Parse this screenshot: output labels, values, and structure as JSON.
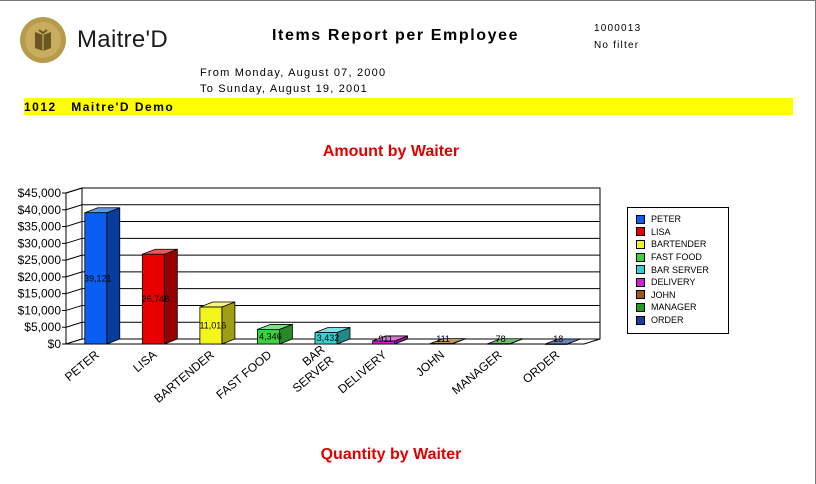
{
  "header": {
    "logo_text": "Maitre'D",
    "title": "Items Report per Employee",
    "code": "1000013",
    "filter": "No filter",
    "date_from": "From Monday, August 07, 2000",
    "date_to": "To Sunday, August 19, 2001",
    "banner": "1012   Maitre'D Demo"
  },
  "chart_titles": {
    "amount": "Amount by Waiter",
    "quantity": "Quantity by Waiter"
  },
  "colors": {
    "banner": "#ffff00",
    "title_red": "#e00000"
  },
  "chart_data": {
    "type": "bar",
    "title": "Amount by Waiter",
    "categories": [
      "PETER",
      "LISA",
      "BARTENDER",
      "FAST FOOD",
      "BAR SERVER",
      "DELIVERY",
      "JOHN",
      "MANAGER",
      "ORDER"
    ],
    "category_labels": [
      [
        "PETER"
      ],
      [
        "LISA"
      ],
      [
        "BARTENDER"
      ],
      [
        "FAST FOOD"
      ],
      [
        "BAR",
        "SERVER"
      ],
      [
        "DELIVERY"
      ],
      [
        "JOHN"
      ],
      [
        "MANAGER"
      ],
      [
        "ORDER"
      ]
    ],
    "values": [
      39121,
      26748,
      11016,
      4346,
      3432,
      911,
      111,
      78,
      18
    ],
    "data_labels": [
      "39,121",
      "26,748",
      "11,016",
      "4,346",
      "3,432",
      "911",
      "111",
      "78",
      "18"
    ],
    "colors": [
      "#0a5ef2",
      "#e60000",
      "#f5f51e",
      "#3cd23c",
      "#32d2d2",
      "#d21ed2",
      "#9a5a14",
      "#1e9c1e",
      "#1e3ca0"
    ],
    "ylim": [
      0,
      45000
    ],
    "yticks": [
      0,
      5000,
      10000,
      15000,
      20000,
      25000,
      30000,
      35000,
      40000,
      45000
    ],
    "ytick_labels": [
      "$0",
      "$5,000",
      "$10,000",
      "$15,000",
      "$20,000",
      "$25,000",
      "$30,000",
      "$35,000",
      "$40,000",
      "$45,000"
    ],
    "legend": [
      "PETER",
      "LISA",
      "BARTENDER",
      "FAST FOOD",
      "BAR SERVER",
      "DELIVERY",
      "JOHN",
      "MANAGER",
      "ORDER"
    ],
    "legend_position": "right",
    "grid": true,
    "style": "3d"
  }
}
